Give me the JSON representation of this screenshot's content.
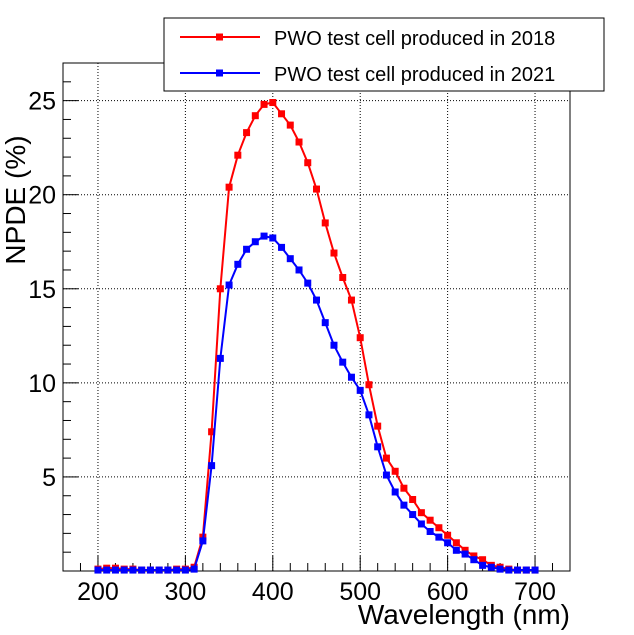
{
  "chart_data": {
    "type": "line",
    "title": "",
    "xlabel": "Wavelength (nm)",
    "ylabel": "NPDE (%)",
    "xlim": [
      160,
      740
    ],
    "ylim": [
      0,
      27
    ],
    "x_ticks": [
      200,
      300,
      400,
      500,
      600,
      700
    ],
    "y_ticks": [
      5,
      10,
      15,
      20,
      25
    ],
    "grid": true,
    "legend_position": "top-right",
    "series": [
      {
        "name": "PWO test cell produced in 2018",
        "color": "#ff0000",
        "x": [
          200,
          210,
          220,
          230,
          240,
          250,
          260,
          270,
          280,
          290,
          300,
          310,
          320,
          330,
          340,
          350,
          360,
          370,
          380,
          390,
          400,
          410,
          420,
          430,
          440,
          450,
          460,
          470,
          480,
          490,
          500,
          510,
          520,
          530,
          540,
          550,
          560,
          570,
          580,
          590,
          600,
          610,
          620,
          630,
          640,
          650,
          660,
          670,
          680,
          690,
          700
        ],
        "values": [
          0.1,
          0.15,
          0.15,
          0.1,
          0.1,
          0.05,
          0.05,
          0.05,
          0.05,
          0.1,
          0.1,
          0.2,
          1.8,
          7.4,
          15.0,
          20.4,
          22.1,
          23.3,
          24.2,
          24.8,
          24.9,
          24.3,
          23.7,
          22.8,
          21.7,
          20.3,
          18.5,
          16.9,
          15.6,
          14.4,
          12.4,
          9.9,
          7.7,
          6.0,
          5.3,
          4.4,
          3.8,
          3.1,
          2.7,
          2.3,
          1.9,
          1.5,
          1.1,
          0.8,
          0.6,
          0.3,
          0.2,
          0.1,
          0.05,
          0.05,
          0.05
        ]
      },
      {
        "name": "PWO test cell produced in 2021",
        "color": "#0000ff",
        "x": [
          200,
          210,
          220,
          230,
          240,
          250,
          260,
          270,
          280,
          290,
          300,
          310,
          320,
          330,
          340,
          350,
          360,
          370,
          380,
          390,
          400,
          410,
          420,
          430,
          440,
          450,
          460,
          470,
          480,
          490,
          500,
          510,
          520,
          530,
          540,
          550,
          560,
          570,
          580,
          590,
          600,
          610,
          620,
          630,
          640,
          650,
          660,
          670,
          680,
          690,
          700
        ],
        "values": [
          0.05,
          0.05,
          0.05,
          0.05,
          0.05,
          0.05,
          0.05,
          0.05,
          0.05,
          0.05,
          0.05,
          0.1,
          1.6,
          5.6,
          11.3,
          15.2,
          16.3,
          17.1,
          17.5,
          17.8,
          17.7,
          17.2,
          16.6,
          16.0,
          15.3,
          14.4,
          13.2,
          12.0,
          11.1,
          10.3,
          9.6,
          8.3,
          6.6,
          5.1,
          4.2,
          3.5,
          3.0,
          2.5,
          2.1,
          1.8,
          1.5,
          1.1,
          0.9,
          0.6,
          0.3,
          0.2,
          0.1,
          0.05,
          0.05,
          0.05,
          0.05
        ]
      }
    ]
  }
}
